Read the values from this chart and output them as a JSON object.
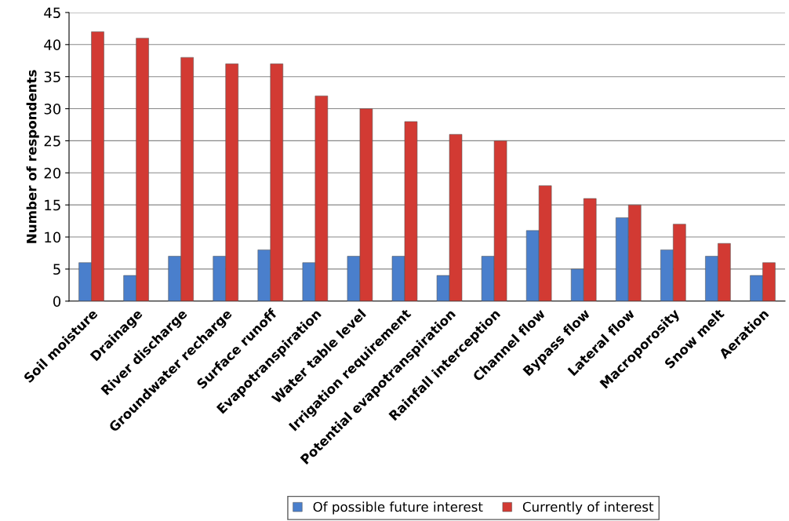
{
  "chart_data": {
    "type": "bar",
    "ylabel": "Number of respondents",
    "categories": [
      "Soil moisture",
      "Drainage",
      "River discharge",
      "Groundwater recharge",
      "Surface runoff",
      "Evapotranspiration",
      "Water table level",
      "Irrigation requirement",
      "Potential evapotranspiration",
      "Rainfall interception",
      "Channel flow",
      "Bypass flow",
      "Lateral flow",
      "Macroporosity",
      "Snow melt",
      "Aeration"
    ],
    "series": [
      {
        "name": "Of possible future interest",
        "color": "#4a7fcc",
        "values": [
          6,
          4,
          7,
          7,
          8,
          6,
          7,
          7,
          4,
          7,
          11,
          5,
          13,
          8,
          7,
          4
        ]
      },
      {
        "name": "Currently of interest",
        "color": "#d23a33",
        "values": [
          42,
          41,
          38,
          37,
          37,
          32,
          30,
          28,
          26,
          25,
          18,
          16,
          15,
          12,
          9,
          6
        ]
      }
    ],
    "ylim": [
      0,
      45
    ],
    "yticks": [
      0,
      5,
      10,
      15,
      20,
      25,
      30,
      35,
      40,
      45
    ],
    "grid": "y",
    "legend": "bottom"
  }
}
